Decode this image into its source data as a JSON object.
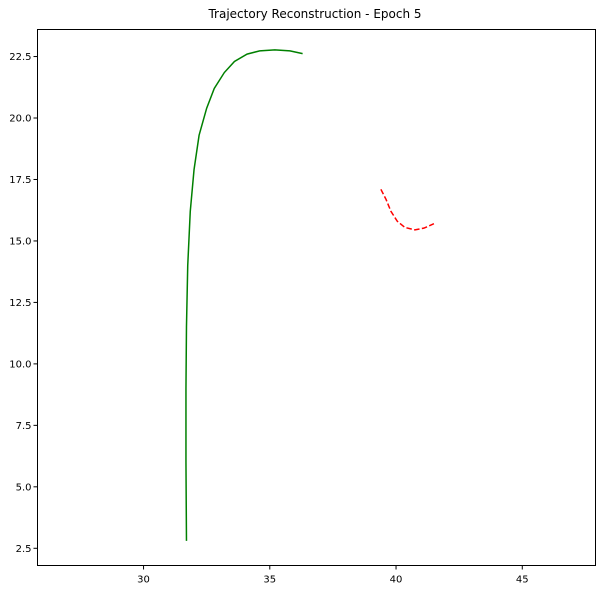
{
  "chart_data": {
    "type": "line",
    "title": "Trajectory Reconstruction - Epoch 5",
    "xlabel": "",
    "ylabel": "",
    "xlim": [
      25.8,
      47.9
    ],
    "ylim": [
      1.8,
      23.6
    ],
    "grid": false,
    "x_ticks": [
      {
        "value": 30,
        "label": "30"
      },
      {
        "value": 35,
        "label": "35"
      },
      {
        "value": 40,
        "label": "40"
      },
      {
        "value": 45,
        "label": "45"
      }
    ],
    "y_ticks": [
      {
        "value": 2.5,
        "label": "2.5"
      },
      {
        "value": 5.0,
        "label": "5.0"
      },
      {
        "value": 7.5,
        "label": "7.5"
      },
      {
        "value": 10.0,
        "label": "10.0"
      },
      {
        "value": 12.5,
        "label": "12.5"
      },
      {
        "value": 15.0,
        "label": "15.0"
      },
      {
        "value": 17.5,
        "label": "17.5"
      },
      {
        "value": 20.0,
        "label": "20.0"
      },
      {
        "value": 22.5,
        "label": "22.5"
      }
    ],
    "series": [
      {
        "color": "#008000",
        "style": "solid",
        "points": [
          [
            31.7,
            2.8
          ],
          [
            31.68,
            6.0
          ],
          [
            31.68,
            9.0
          ],
          [
            31.7,
            11.5
          ],
          [
            31.75,
            14.0
          ],
          [
            31.85,
            16.2
          ],
          [
            32.0,
            17.9
          ],
          [
            32.2,
            19.3
          ],
          [
            32.5,
            20.4
          ],
          [
            32.8,
            21.2
          ],
          [
            33.2,
            21.85
          ],
          [
            33.6,
            22.3
          ],
          [
            34.1,
            22.6
          ],
          [
            34.6,
            22.73
          ],
          [
            35.2,
            22.77
          ],
          [
            35.8,
            22.73
          ],
          [
            36.3,
            22.62
          ]
        ]
      },
      {
        "color": "#ff0000",
        "style": "dashed",
        "points": [
          [
            39.4,
            17.1
          ],
          [
            39.6,
            16.7
          ],
          [
            39.8,
            16.2
          ],
          [
            40.05,
            15.8
          ],
          [
            40.35,
            15.55
          ],
          [
            40.75,
            15.45
          ],
          [
            41.1,
            15.52
          ],
          [
            41.5,
            15.7
          ]
        ]
      }
    ]
  }
}
